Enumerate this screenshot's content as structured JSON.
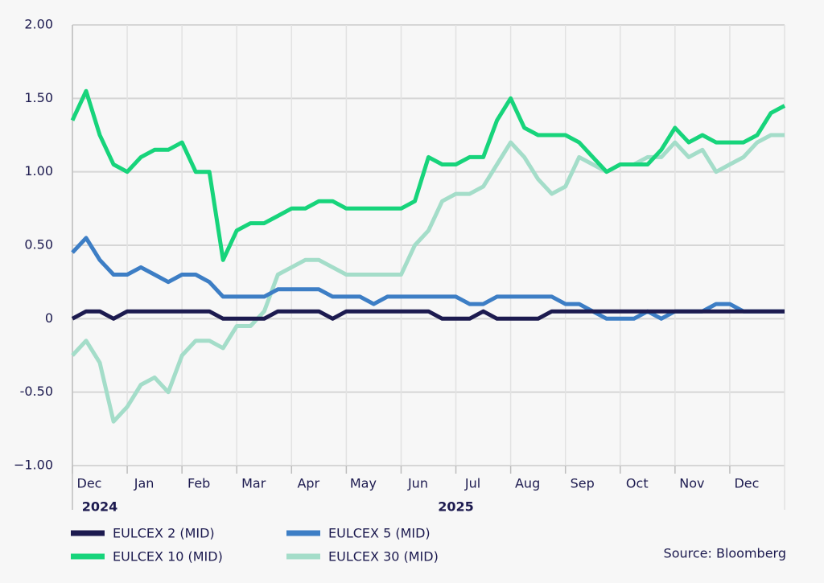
{
  "chart_data": {
    "type": "line",
    "categories": [
      "Dec",
      null,
      null,
      null,
      "Jan",
      null,
      null,
      null,
      "Feb",
      null,
      null,
      null,
      "Mar",
      null,
      null,
      null,
      "Apr",
      null,
      null,
      null,
      "May",
      null,
      null,
      null,
      "Jun",
      null,
      null,
      null,
      "Jul",
      null,
      null,
      null,
      "Aug",
      null,
      null,
      null,
      "Sep",
      null,
      null,
      null,
      "Oct",
      null,
      null,
      null,
      "Nov",
      null,
      null,
      null,
      "Dec",
      null,
      null,
      null,
      null
    ],
    "category_groups": [
      {
        "label": "2024",
        "start": 0
      },
      {
        "label": "2025",
        "start": 4
      }
    ],
    "series": [
      {
        "name": "EULCEX 2 (MID)",
        "color": "#1c1a4f",
        "values": [
          0,
          0.05,
          0.05,
          0,
          0.05,
          0.05,
          0.05,
          0.05,
          0.05,
          0.05,
          0.05,
          0,
          0,
          0,
          0,
          0.05,
          0.05,
          0.05,
          0.05,
          0,
          0.05,
          0.05,
          0.05,
          0.05,
          0.05,
          0.05,
          0.05,
          0,
          0,
          0,
          0.05,
          0,
          0,
          0,
          0,
          0.05,
          0.05,
          0.05,
          0.05,
          0.05,
          0.05,
          0.05,
          0.05,
          0.05,
          0.05,
          0.05,
          0.05,
          0.05,
          0.05,
          0.05,
          0.05,
          0.05,
          0.05
        ]
      },
      {
        "name": "EULCEX 10 (MID)",
        "color": "#17d47b",
        "values": [
          1.35,
          1.55,
          1.25,
          1.05,
          1.0,
          1.1,
          1.15,
          1.15,
          1.2,
          1.0,
          1.0,
          0.4,
          0.6,
          0.65,
          0.65,
          0.7,
          0.75,
          0.75,
          0.8,
          0.8,
          0.75,
          0.75,
          0.75,
          0.75,
          0.75,
          0.8,
          1.1,
          1.05,
          1.05,
          1.1,
          1.1,
          1.35,
          1.5,
          1.3,
          1.25,
          1.25,
          1.25,
          1.2,
          1.1,
          1.0,
          1.05,
          1.05,
          1.05,
          1.15,
          1.3,
          1.2,
          1.25,
          1.2,
          1.2,
          1.2,
          1.25,
          1.4,
          1.45
        ]
      },
      {
        "name": "EULCEX 5 (MID)",
        "color": "#3d7ec5",
        "values": [
          0.45,
          0.55,
          0.4,
          0.3,
          0.3,
          0.35,
          0.3,
          0.25,
          0.3,
          0.3,
          0.25,
          0.15,
          0.15,
          0.15,
          0.15,
          0.2,
          0.2,
          0.2,
          0.2,
          0.15,
          0.15,
          0.15,
          0.1,
          0.15,
          0.15,
          0.15,
          0.15,
          0.15,
          0.15,
          0.1,
          0.1,
          0.15,
          0.15,
          0.15,
          0.15,
          0.15,
          0.1,
          0.1,
          0.05,
          0,
          0,
          0,
          0.05,
          0,
          0.05,
          0.05,
          0.05,
          0.1,
          0.1,
          0.05,
          0.05,
          0.05,
          0.05
        ]
      },
      {
        "name": "EULCEX 30 (MID)",
        "color": "#a4ddc9",
        "values": [
          -0.25,
          -0.15,
          -0.3,
          -0.7,
          -0.6,
          -0.45,
          -0.4,
          -0.5,
          -0.25,
          -0.15,
          -0.15,
          -0.2,
          -0.05,
          -0.05,
          0.05,
          0.3,
          0.35,
          0.4,
          0.4,
          0.35,
          0.3,
          0.3,
          0.3,
          0.3,
          0.3,
          0.5,
          0.6,
          0.8,
          0.85,
          0.85,
          0.9,
          1.05,
          1.2,
          1.1,
          0.95,
          0.85,
          0.9,
          1.1,
          1.05,
          1.0,
          1.05,
          1.05,
          1.1,
          1.1,
          1.2,
          1.1,
          1.15,
          1.0,
          1.05,
          1.1,
          1.2,
          1.25,
          1.25
        ]
      }
    ],
    "ylim": [
      -1,
      2
    ],
    "yticks": [
      {
        "value": -1,
        "label": "−1.00"
      },
      {
        "value": -0.5,
        "label": "-0.50"
      },
      0,
      {
        "value": 0.5,
        "label": "0.50"
      },
      {
        "value": 1,
        "label": "1.00"
      },
      {
        "value": 1.5,
        "label": "1.50"
      },
      {
        "value": 2,
        "label": "2.00"
      }
    ],
    "grid": true,
    "source": "Source: Bloomberg"
  }
}
